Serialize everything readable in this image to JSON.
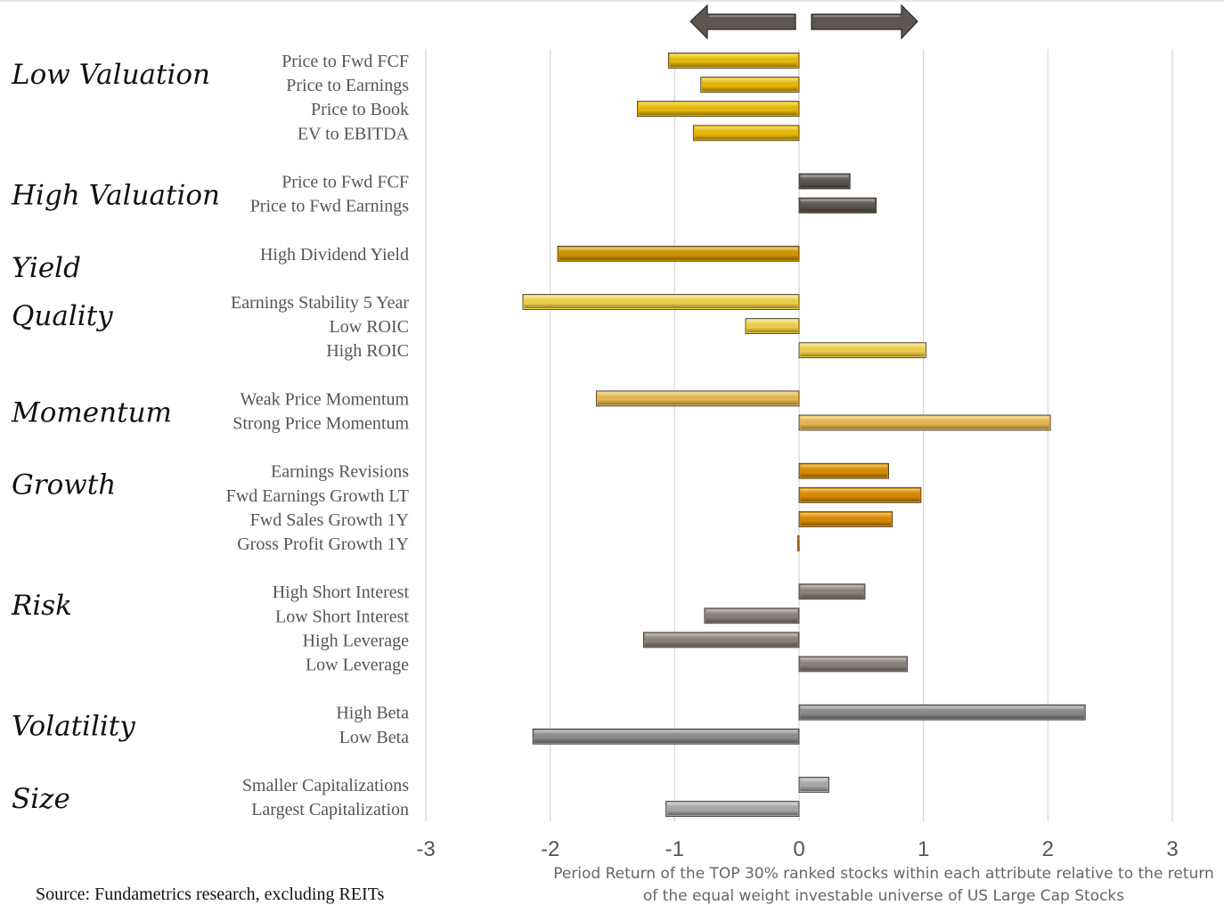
{
  "chart_data": {
    "type": "bar",
    "orientation": "horizontal",
    "xlim": [
      -3,
      3
    ],
    "xticks": [
      -3,
      -2,
      -1,
      0,
      1,
      2,
      3
    ],
    "tick_labels": [
      "-3",
      "-2",
      "-1",
      "0",
      "1",
      "2",
      "3"
    ],
    "grid": true,
    "direction_arrows": [
      "left",
      "right"
    ],
    "groups": [
      {
        "name": "Low Valuation",
        "color": "#e8b800",
        "items": [
          {
            "label": "Price to Fwd FCF",
            "value": -1.05
          },
          {
            "label": "Price to Earnings",
            "value": -0.79
          },
          {
            "label": "Price to Book",
            "value": -1.3
          },
          {
            "label": "EV to EBITDA",
            "value": -0.85
          }
        ]
      },
      {
        "name": "High Valuation",
        "color": "#5a5550",
        "items": [
          {
            "label": "Price to Fwd FCF",
            "value": 0.41
          },
          {
            "label": "Price to Fwd Earnings",
            "value": 0.62
          }
        ]
      },
      {
        "name": "Yield",
        "color": "#d49400",
        "items": [
          {
            "label": "High Dividend Yield",
            "value": -1.94
          }
        ]
      },
      {
        "name": "Quality",
        "color": "#f0d048",
        "items": [
          {
            "label": "Earnings Stability 5 Year",
            "value": -2.22
          },
          {
            "label": "Low ROIC",
            "value": -0.43
          },
          {
            "label": "High ROIC",
            "value": 1.02
          }
        ]
      },
      {
        "name": "Momentum",
        "color": "#e8b850",
        "items": [
          {
            "label": "Weak Price Momentum",
            "value": -1.63
          },
          {
            "label": "Strong Price Momentum",
            "value": 2.02
          }
        ]
      },
      {
        "name": "Growth",
        "color": "#d98c00",
        "items": [
          {
            "label": "Earnings Revisions",
            "value": 0.72
          },
          {
            "label": "Fwd Earnings Growth LT",
            "value": 0.98
          },
          {
            "label": "Fwd Sales Growth 1Y",
            "value": 0.75
          },
          {
            "label": "Gross Profit Growth 1Y",
            "value": -0.01
          }
        ]
      },
      {
        "name": "Risk",
        "color": "#8a837c",
        "items": [
          {
            "label": "High Short Interest",
            "value": 0.53
          },
          {
            "label": "Low Short Interest",
            "value": -0.76
          },
          {
            "label": "High Leverage",
            "value": -1.25
          },
          {
            "label": "Low Leverage",
            "value": 0.87
          }
        ]
      },
      {
        "name": "Volatility",
        "color": "#8c8c8c",
        "items": [
          {
            "label": "High Beta",
            "value": 2.3
          },
          {
            "label": "Low Beta",
            "value": -2.14
          }
        ]
      },
      {
        "name": "Size",
        "color": "#a8a8a8",
        "items": [
          {
            "label": "Smaller Capitalizations",
            "value": 0.24
          },
          {
            "label": "Largest Capitalization",
            "value": -1.07
          }
        ]
      }
    ],
    "xlabel_line1": "Period Return of the TOP 30% ranked stocks within each attribute relative to the return",
    "xlabel_line2": "of the equal weight investable universe of US Large Cap Stocks"
  },
  "footer": {
    "source": "Source:  Fundametrics research, excluding REITs"
  }
}
